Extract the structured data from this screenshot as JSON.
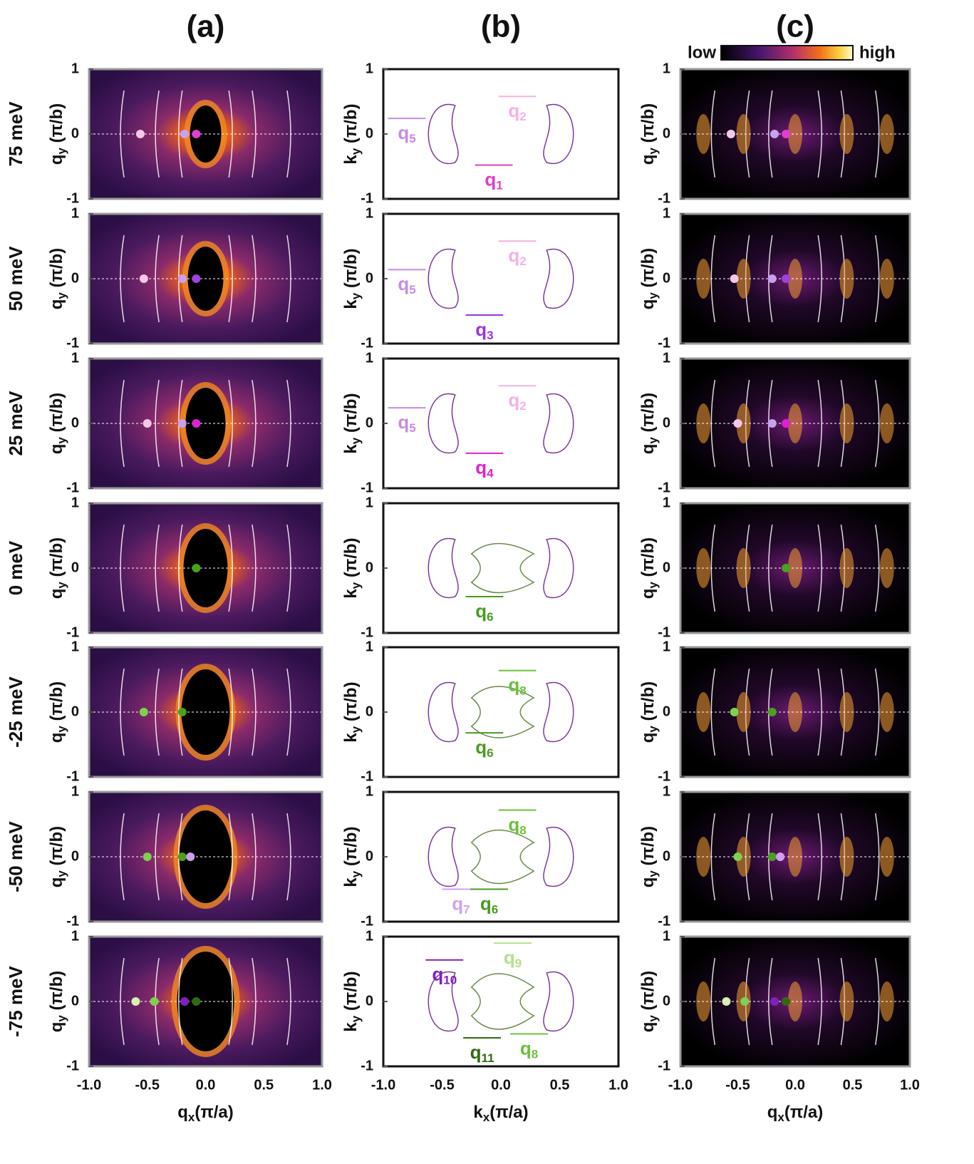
{
  "columns": [
    {
      "label": "(a)",
      "y_label": {
        "symbol": "q",
        "sub": "y",
        "unit": " (π/b)"
      },
      "x_label": {
        "symbol": "q",
        "sub": "x",
        "unit": "(π/a)"
      }
    },
    {
      "label": "(b)",
      "y_label": {
        "symbol": "k",
        "sub": "y",
        "unit": " (π/b)"
      },
      "x_label": {
        "symbol": "k",
        "sub": "x",
        "unit": "(π/a)"
      }
    },
    {
      "label": "(c)",
      "y_label": {
        "symbol": "q",
        "sub": "y",
        "unit": " (π/b)"
      },
      "x_label": {
        "symbol": "q",
        "sub": "x",
        "unit": "(π/a)"
      }
    }
  ],
  "colorbar": {
    "low": "low",
    "high": "high"
  },
  "yticks": [
    1,
    0,
    -1
  ],
  "xticks": [
    {
      "value": -1,
      "label": "-1.0"
    },
    -0.5,
    {
      "value": 0,
      "label": "0.0"
    },
    0.5,
    {
      "value": 1,
      "label": "1.0"
    }
  ],
  "rows": [
    {
      "energy": "75 meV",
      "q_labels": [
        {
          "symbol": "q",
          "index": "5"
        },
        {
          "symbol": "q",
          "index": "2"
        },
        {
          "symbol": "q",
          "index": "1"
        }
      ]
    },
    {
      "energy": "50 meV",
      "q_labels": [
        {
          "symbol": "q",
          "index": "5"
        },
        {
          "symbol": "q",
          "index": "2"
        },
        {
          "symbol": "q",
          "index": "3"
        }
      ]
    },
    {
      "energy": "25 meV",
      "q_labels": [
        {
          "symbol": "q",
          "index": "5"
        },
        {
          "symbol": "q",
          "index": "2"
        },
        {
          "symbol": "q",
          "index": "4"
        }
      ]
    },
    {
      "energy": "0 meV",
      "q_labels": [
        {
          "symbol": "q",
          "index": "6"
        }
      ]
    },
    {
      "energy": "-25 meV",
      "q_labels": [
        {
          "symbol": "q",
          "index": "8"
        },
        {
          "symbol": "q",
          "index": "6"
        }
      ]
    },
    {
      "energy": "-50 meV",
      "q_labels": [
        {
          "symbol": "q",
          "index": "8"
        },
        {
          "symbol": "q",
          "index": "7"
        },
        {
          "symbol": "q",
          "index": "6"
        }
      ]
    },
    {
      "energy": "-75 meV",
      "q_labels": [
        {
          "symbol": "q",
          "index": "10"
        },
        {
          "symbol": "q",
          "index": "9"
        },
        {
          "symbol": "q",
          "index": "11"
        },
        {
          "symbol": "q",
          "index": "8"
        }
      ]
    }
  ]
}
